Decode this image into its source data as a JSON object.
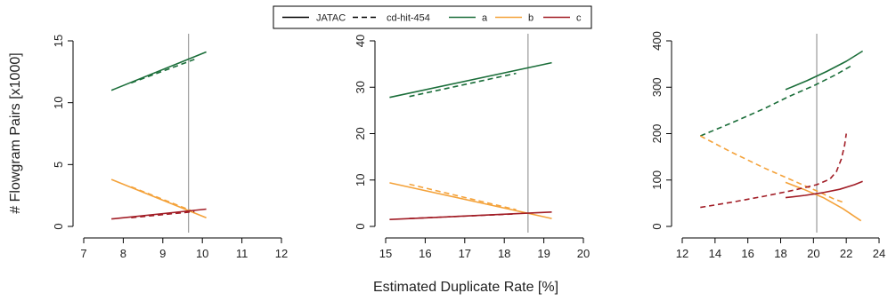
{
  "figure": {
    "ylabel": "# Flowgram Pairs [x1000]",
    "xlabel": "Estimated Duplicate Rate [%]"
  },
  "legend": {
    "items": [
      {
        "label": "JATAC",
        "dash": "solid",
        "color": "#000000"
      },
      {
        "label": "cd-hit-454",
        "dash": "dashed",
        "color": "#000000"
      },
      {
        "label": "a",
        "dash": "solid",
        "color": "#1b6e3a"
      },
      {
        "label": "b",
        "dash": "solid",
        "color": "#f4a23a"
      },
      {
        "label": "c",
        "dash": "solid",
        "color": "#a11c25"
      }
    ]
  },
  "chart_data": [
    {
      "type": "line",
      "xlim": [
        7,
        12
      ],
      "ylim": [
        0,
        15
      ],
      "xticks": [
        7,
        8,
        9,
        10,
        11,
        12
      ],
      "yticks": [
        0,
        5,
        10,
        15
      ],
      "vline": 9.65,
      "grid": false,
      "series": [
        {
          "name": "a",
          "method": "JATAC",
          "color": "#1b6e3a",
          "dash": "solid",
          "points": [
            [
              7.7,
              11.0
            ],
            [
              10.1,
              14.1
            ]
          ]
        },
        {
          "name": "a",
          "method": "cd-hit-454",
          "color": "#1b6e3a",
          "dash": "dashed",
          "points": [
            [
              8.2,
              11.6
            ],
            [
              9.8,
              13.5
            ]
          ]
        },
        {
          "name": "b",
          "method": "JATAC",
          "color": "#f4a23a",
          "dash": "solid",
          "points": [
            [
              7.7,
              3.8
            ],
            [
              10.1,
              0.7
            ]
          ]
        },
        {
          "name": "b",
          "method": "cd-hit-454",
          "color": "#f4a23a",
          "dash": "dashed",
          "points": [
            [
              8.2,
              3.2
            ],
            [
              9.7,
              1.3
            ]
          ]
        },
        {
          "name": "c",
          "method": "JATAC",
          "color": "#a11c25",
          "dash": "solid",
          "points": [
            [
              7.7,
              0.6
            ],
            [
              10.1,
              1.4
            ]
          ]
        },
        {
          "name": "c",
          "method": "cd-hit-454",
          "color": "#a11c25",
          "dash": "dashed",
          "points": [
            [
              8.2,
              0.7
            ],
            [
              9.8,
              1.2
            ]
          ]
        }
      ]
    },
    {
      "type": "line",
      "xlim": [
        15,
        20
      ],
      "ylim": [
        0,
        40
      ],
      "xticks": [
        15,
        16,
        17,
        18,
        19,
        20
      ],
      "yticks": [
        0,
        10,
        20,
        30,
        40
      ],
      "vline": 18.6,
      "grid": false,
      "series": [
        {
          "name": "a",
          "method": "JATAC",
          "color": "#1b6e3a",
          "dash": "solid",
          "points": [
            [
              15.1,
              27.8
            ],
            [
              19.2,
              35.3
            ]
          ]
        },
        {
          "name": "a",
          "method": "cd-hit-454",
          "color": "#1b6e3a",
          "dash": "dashed",
          "points": [
            [
              15.6,
              28.0
            ],
            [
              18.3,
              33.0
            ]
          ]
        },
        {
          "name": "b",
          "method": "JATAC",
          "color": "#f4a23a",
          "dash": "solid",
          "points": [
            [
              15.1,
              9.4
            ],
            [
              19.2,
              1.7
            ]
          ]
        },
        {
          "name": "b",
          "method": "cd-hit-454",
          "color": "#f4a23a",
          "dash": "dashed",
          "points": [
            [
              15.6,
              9.1
            ],
            [
              18.3,
              3.6
            ]
          ]
        },
        {
          "name": "c",
          "method": "JATAC",
          "color": "#a11c25",
          "dash": "solid",
          "points": [
            [
              15.1,
              1.5
            ],
            [
              19.2,
              3.1
            ]
          ]
        },
        {
          "name": "c",
          "method": "cd-hit-454",
          "color": "#a11c25",
          "dash": "dashed",
          "points": [
            [
              15.6,
              1.7
            ],
            [
              18.3,
              2.7
            ]
          ]
        }
      ]
    },
    {
      "type": "line",
      "xlim": [
        12,
        24
      ],
      "ylim": [
        0,
        400
      ],
      "xticks": [
        12,
        14,
        16,
        18,
        20,
        22,
        24
      ],
      "yticks": [
        0,
        100,
        200,
        300,
        400
      ],
      "vline": 20.2,
      "grid": false,
      "series": [
        {
          "name": "a",
          "method": "JATAC",
          "color": "#1b6e3a",
          "dash": "solid",
          "points": [
            [
              18.3,
              295
            ],
            [
              19.6,
              314
            ],
            [
              20.8,
              334
            ],
            [
              22.0,
              356
            ],
            [
              23.0,
              378
            ]
          ]
        },
        {
          "name": "a",
          "method": "cd-hit-454",
          "color": "#1b6e3a",
          "dash": "dashed",
          "points": [
            [
              13.1,
              195
            ],
            [
              15.0,
              223
            ],
            [
              17.0,
              254
            ],
            [
              18.5,
              280
            ],
            [
              20.0,
              303
            ],
            [
              21.3,
              326
            ],
            [
              22.3,
              346
            ]
          ]
        },
        {
          "name": "b",
          "method": "JATAC",
          "color": "#f4a23a",
          "dash": "solid",
          "points": [
            [
              18.3,
              95
            ],
            [
              19.4,
              80
            ],
            [
              20.6,
              62
            ],
            [
              21.8,
              38
            ],
            [
              22.9,
              12
            ]
          ]
        },
        {
          "name": "b",
          "method": "cd-hit-454",
          "color": "#f4a23a",
          "dash": "dashed",
          "points": [
            [
              13.1,
              195
            ],
            [
              15.0,
              160
            ],
            [
              17.0,
              126
            ],
            [
              18.8,
              98
            ],
            [
              20.3,
              75
            ],
            [
              21.2,
              60
            ],
            [
              21.8,
              52
            ]
          ]
        },
        {
          "name": "c",
          "method": "JATAC",
          "color": "#a11c25",
          "dash": "solid",
          "points": [
            [
              18.3,
              62
            ],
            [
              19.5,
              67
            ],
            [
              20.6,
              73
            ],
            [
              21.6,
              80
            ],
            [
              22.5,
              90
            ],
            [
              23.0,
              97
            ]
          ]
        },
        {
          "name": "c",
          "method": "cd-hit-454",
          "color": "#a11c25",
          "dash": "dashed",
          "points": [
            [
              13.1,
              41
            ],
            [
              15.0,
              52
            ],
            [
              17.0,
              65
            ],
            [
              18.8,
              78
            ],
            [
              20.2,
              90
            ],
            [
              21.0,
              102
            ],
            [
              21.4,
              118
            ],
            [
              21.7,
              145
            ],
            [
              21.9,
              175
            ],
            [
              22.0,
              200
            ]
          ]
        }
      ]
    }
  ]
}
